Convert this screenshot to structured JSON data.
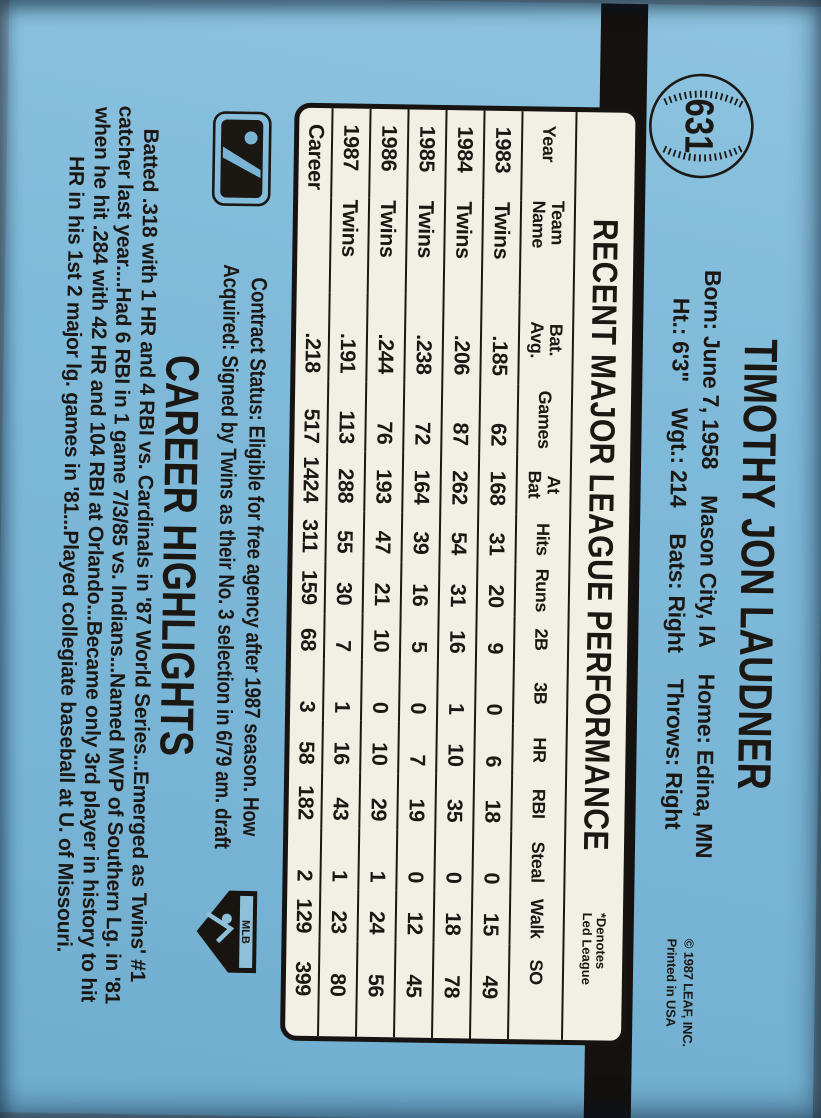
{
  "card": {
    "number": "631",
    "player_name": "TIMOTHY JON LAUDNER",
    "bio": {
      "born": "Born: June 7, 1958",
      "birthplace": "Mason City, IA",
      "home": "Home: Edina, MN",
      "height": "Ht.: 6'3\"",
      "weight": "Wgt.: 214",
      "bats": "Bats: Right",
      "throws": "Throws: Right"
    },
    "copyright_line1": "© 1987 LEAF, INC.",
    "copyright_line2": "Printed in USA",
    "stats_panel": {
      "title": "RECENT MAJOR LEAGUE PERFORMANCE",
      "note_line1": "*Denotes",
      "note_line2": "Led League",
      "columns": [
        [
          "Year",
          ""
        ],
        [
          "Team",
          "Name"
        ],
        [
          "Bat.",
          "Avg."
        ],
        [
          "Games",
          ""
        ],
        [
          "At",
          "Bat"
        ],
        [
          "Hits",
          ""
        ],
        [
          "Runs",
          ""
        ],
        [
          "2B",
          ""
        ],
        [
          "3B",
          ""
        ],
        [
          "HR",
          ""
        ],
        [
          "RBI",
          ""
        ],
        [
          "Steal",
          ""
        ],
        [
          "Walk",
          ""
        ],
        [
          "SO",
          ""
        ]
      ],
      "rows": [
        [
          "1983",
          "Twins",
          ".185",
          "62",
          "168",
          "31",
          "20",
          "9",
          "0",
          "6",
          "18",
          "0",
          "15",
          "49"
        ],
        [
          "1984",
          "Twins",
          ".206",
          "87",
          "262",
          "54",
          "31",
          "16",
          "1",
          "10",
          "35",
          "0",
          "18",
          "78"
        ],
        [
          "1985",
          "Twins",
          ".238",
          "72",
          "164",
          "39",
          "16",
          "5",
          "0",
          "7",
          "19",
          "0",
          "12",
          "45"
        ],
        [
          "1986",
          "Twins",
          ".244",
          "76",
          "193",
          "47",
          "21",
          "10",
          "0",
          "10",
          "29",
          "1",
          "24",
          "56"
        ],
        [
          "1987",
          "Twins",
          ".191",
          "113",
          "288",
          "55",
          "30",
          "7",
          "1",
          "16",
          "43",
          "1",
          "23",
          "80"
        ],
        [
          "Career",
          "",
          ".218",
          "517",
          "1424",
          "311",
          "159",
          "68",
          "3",
          "58",
          "182",
          "2",
          "129",
          "399"
        ]
      ]
    },
    "contract_line1": "Contract Status: Eligible for free agency after 1987 season. How",
    "contract_line2": "Acquired: Signed by Twins as their No. 3 selection in 6/79 am. draft",
    "career_heading": "CAREER HIGHLIGHTS",
    "highlights": [
      "Batted .318 with 1 HR and 4 RBI vs. Cardinals in '87 World Series...Emerged as Twins' #1",
      "catcher last year....Had 6 RBI in 1 game 7/3/85 vs. Indians...Named MVP of Southern Lg. in '81",
      "when he hit .284 with 42 HR and 104 RBI at Orlando...Became only 3rd player in history to hit",
      "HR in his 1st 2 major lg. games in '81...Played collegiate baseball at U. of Missouri."
    ],
    "logos": {
      "mlbpa_text": "MLB"
    },
    "colors": {
      "card_blue": "#7cb7d7",
      "panel_cream": "#f2efe4",
      "ink": "#1b1713",
      "band_black": "#14110e"
    }
  }
}
